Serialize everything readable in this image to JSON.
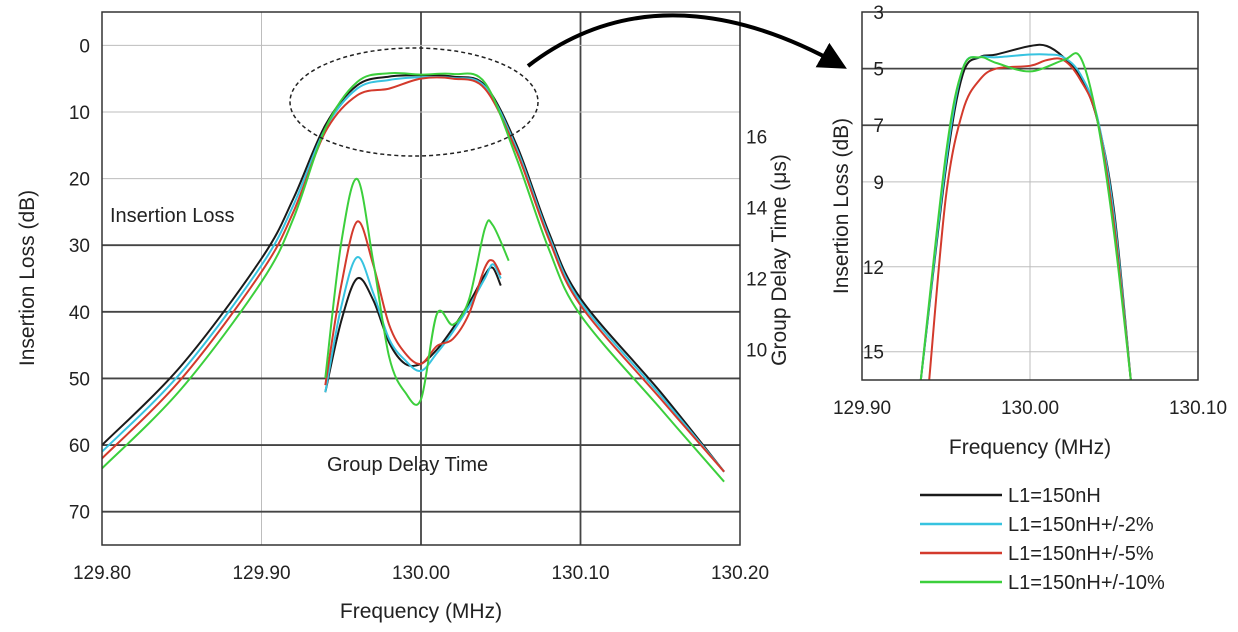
{
  "chart_data": [
    {
      "type": "line",
      "xlabel": "Frequency (MHz)",
      "ylabel": "Insertion Loss (dB)",
      "y2label": "Group Delay Time (μs)",
      "xlim": [
        129.8,
        130.2
      ],
      "ylim": [
        75,
        -5
      ],
      "y2lim": [
        4.5,
        19.5
      ],
      "x_ticks": [
        "129.80",
        "129.90",
        "130.00",
        "130.10",
        "130.20"
      ],
      "y_ticks": [
        "0",
        "10",
        "20",
        "30",
        "40",
        "50",
        "60",
        "70"
      ],
      "y2_ticks": [
        "10",
        "12",
        "14",
        "16"
      ],
      "grid": true,
      "annotations": [
        "Insertion Loss",
        "Group Delay Time"
      ],
      "insertion_loss_series": [
        {
          "name": "L1=150nH",
          "color": "#1a1a1a",
          "x": [
            129.8,
            129.85,
            129.9,
            129.92,
            129.94,
            129.96,
            129.98,
            130.0,
            130.02,
            130.04,
            130.06,
            130.08,
            130.1,
            130.15,
            130.19
          ],
          "y": [
            60,
            48,
            32,
            23,
            12,
            6,
            4.7,
            4.5,
            4.7,
            6,
            15,
            28,
            38,
            52,
            64
          ]
        },
        {
          "name": "L1=150nH+/-2%",
          "color": "#37c3e0",
          "x": [
            129.8,
            129.85,
            129.9,
            129.92,
            129.94,
            129.96,
            129.98,
            130.0,
            130.02,
            130.04,
            130.06,
            130.08,
            130.1,
            130.15,
            130.19
          ],
          "y": [
            61,
            49,
            33,
            24,
            12.5,
            6.5,
            5.2,
            4.8,
            4.9,
            6.2,
            15.5,
            28.5,
            38.5,
            52.5,
            64
          ]
        },
        {
          "name": "L1=150nH+/-5%",
          "color": "#d33a2c",
          "x": [
            129.8,
            129.85,
            129.9,
            129.92,
            129.94,
            129.96,
            129.98,
            130.0,
            130.02,
            130.04,
            130.06,
            130.08,
            130.1,
            130.15,
            130.19
          ],
          "y": [
            62,
            50,
            34,
            25,
            13,
            7.5,
            6.5,
            5,
            5,
            6.5,
            16,
            29,
            39,
            53,
            64
          ]
        },
        {
          "name": "L1=150nH+/-10%",
          "color": "#3ccf3c",
          "x": [
            129.8,
            129.85,
            129.9,
            129.92,
            129.94,
            129.96,
            129.98,
            130.0,
            130.02,
            130.04,
            130.06,
            130.08,
            130.1,
            130.15,
            130.19
          ],
          "y": [
            63.5,
            51.5,
            35.5,
            26,
            12.5,
            5.5,
            4.2,
            4.4,
            4.3,
            5.6,
            17,
            30.5,
            40.5,
            54.5,
            65.5
          ]
        }
      ],
      "group_delay_series": [
        {
          "name": "L1=150nH",
          "x": [
            129.94,
            129.95,
            129.96,
            129.97,
            129.98,
            129.99,
            130.0,
            130.01,
            130.02,
            130.03,
            130.04,
            130.045,
            130.05
          ],
          "y": [
            8.8,
            10.8,
            12.0,
            11.4,
            10.2,
            9.6,
            9.6,
            10.0,
            10.6,
            11.3,
            12.1,
            12.3,
            11.8
          ]
        },
        {
          "name": "L1=150nH+/-2%",
          "x": [
            129.94,
            129.95,
            129.96,
            129.97,
            129.98,
            129.99,
            130.0,
            130.01,
            130.02,
            130.03,
            130.04,
            130.045,
            130.05
          ],
          "y": [
            8.8,
            11.2,
            12.6,
            11.6,
            10.3,
            9.7,
            9.4,
            9.9,
            10.5,
            11.2,
            12.0,
            12.4,
            12.0
          ]
        },
        {
          "name": "L1=150nH+/-5%",
          "x": [
            129.94,
            129.95,
            129.96,
            129.97,
            129.98,
            129.99,
            130.0,
            130.01,
            130.02,
            130.03,
            130.04,
            130.045,
            130.05
          ],
          "y": [
            9.0,
            11.8,
            13.6,
            12.4,
            10.7,
            9.9,
            9.6,
            10.1,
            10.3,
            11.0,
            12.3,
            12.5,
            12.1
          ]
        },
        {
          "name": "L1=150nH+/-10%",
          "x": [
            129.94,
            129.95,
            129.96,
            129.97,
            129.98,
            129.99,
            130.0,
            130.01,
            130.02,
            130.03,
            130.04,
            130.045,
            130.055
          ],
          "y": [
            9.2,
            13.0,
            14.8,
            12.5,
            9.8,
            8.8,
            8.6,
            11.0,
            10.7,
            11.4,
            13.4,
            13.5,
            12.5
          ]
        }
      ]
    },
    {
      "type": "line",
      "xlabel": "Frequency (MHz)",
      "ylabel": "Insertion Loss (dB)",
      "xlim": [
        129.9,
        130.1
      ],
      "ylim": [
        16,
        3
      ],
      "x_ticks": [
        "129.90",
        "130.00",
        "130.10"
      ],
      "y_ticks": [
        "3",
        "5",
        "7",
        "9",
        "12",
        "15"
      ],
      "grid": true,
      "series": [
        {
          "name": "L1=150nH",
          "x": [
            129.935,
            129.95,
            129.96,
            129.97,
            129.98,
            130.0,
            130.01,
            130.02,
            130.03,
            130.04,
            130.05,
            130.06
          ],
          "y": [
            16,
            8.5,
            5.2,
            4.6,
            4.5,
            4.2,
            4.2,
            4.6,
            5.3,
            6.8,
            10,
            16
          ]
        },
        {
          "name": "L1=150nH+/-2%",
          "x": [
            129.935,
            129.95,
            129.96,
            129.97,
            129.98,
            130.0,
            130.01,
            130.02,
            130.03,
            130.04,
            130.05,
            130.06
          ],
          "y": [
            16,
            8.3,
            5.0,
            4.6,
            4.6,
            4.5,
            4.5,
            4.6,
            5.2,
            6.7,
            10.2,
            16
          ]
        },
        {
          "name": "L1=150nH+/-5%",
          "x": [
            129.94,
            129.95,
            129.96,
            129.97,
            129.98,
            130.0,
            130.01,
            130.02,
            130.03,
            130.04,
            130.05,
            130.06
          ],
          "y": [
            16,
            9.5,
            6.5,
            5.4,
            5.0,
            4.9,
            4.7,
            4.7,
            5.4,
            6.8,
            10.5,
            16
          ]
        },
        {
          "name": "L1=150nH+/-10%",
          "x": [
            129.935,
            129.95,
            129.96,
            129.97,
            129.98,
            130.0,
            130.02,
            130.03,
            130.04,
            130.05,
            130.06
          ],
          "y": [
            16,
            8.0,
            5.0,
            4.6,
            4.8,
            5.1,
            4.7,
            4.6,
            6.8,
            10.8,
            16
          ]
        }
      ]
    }
  ],
  "legend": {
    "entries": [
      {
        "label": "L1=150nH",
        "color": "#1a1a1a"
      },
      {
        "label": "L1=150nH+/-2%",
        "color": "#37c3e0"
      },
      {
        "label": "L1=150nH+/-5%",
        "color": "#d33a2c"
      },
      {
        "label": "L1=150nH+/-10%",
        "color": "#3ccf3c"
      }
    ]
  }
}
